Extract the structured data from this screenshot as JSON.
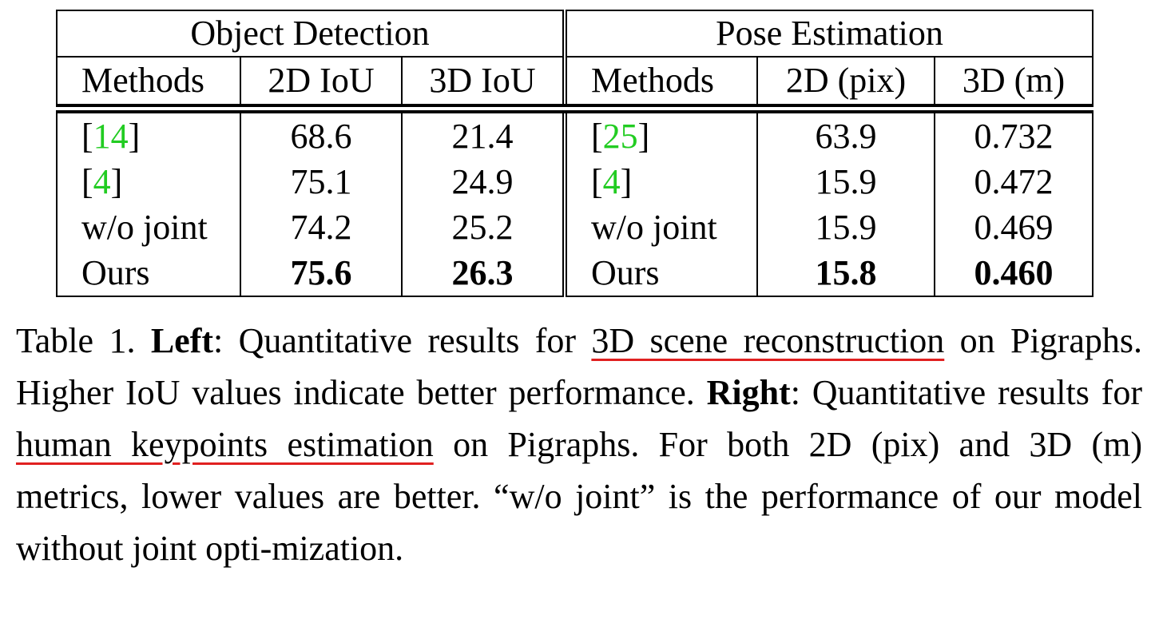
{
  "table": {
    "groups": [
      "Object Detection",
      "Pose Estimation"
    ],
    "headers": [
      "Methods",
      "2D IoU",
      "3D IoU",
      "Methods",
      "2D (pix)",
      "3D (m)"
    ],
    "rows": [
      {
        "od_method_prefix": "[",
        "od_method_cite": "14",
        "od_method_suffix": "]",
        "od_2d": "68.6",
        "od_3d": "21.4",
        "pe_method_prefix": "[",
        "pe_method_cite": "25",
        "pe_method_suffix": "]",
        "pe_2d": "63.9",
        "pe_3d": "0.732"
      },
      {
        "od_method_prefix": "[",
        "od_method_cite": "4",
        "od_method_suffix": "]",
        "od_2d": "75.1",
        "od_3d": "24.9",
        "pe_method_prefix": "[",
        "pe_method_cite": "4",
        "pe_method_suffix": "]",
        "pe_2d": "15.9",
        "pe_3d": "0.472"
      },
      {
        "od_method": "w/o joint",
        "od_2d": "74.2",
        "od_3d": "25.2",
        "pe_method": "w/o joint",
        "pe_2d": "15.9",
        "pe_3d": "0.469"
      },
      {
        "od_method": "Ours",
        "od_2d": "75.6",
        "od_3d": "26.3",
        "pe_method": "Ours",
        "pe_2d": "15.8",
        "pe_3d": "0.460"
      }
    ]
  },
  "caption": {
    "label": "Table 1. ",
    "left_label": "Left",
    "part1": ": Quantitative results for ",
    "underline1": "3D scene reconstruction",
    "part2": " on Pigraphs. Higher IoU values indicate better performance. ",
    "right_label": "Right",
    "part3": ": Quantitative results for ",
    "underline2": "human keypoints estimation",
    "part4": " on Pigraphs. For both 2D (pix) and 3D (m) metrics, lower values are better. “w/o joint” is the performance of our model without joint opti-­mization."
  },
  "colors": {
    "citation": "#22cc22",
    "underline": "#e02020"
  }
}
